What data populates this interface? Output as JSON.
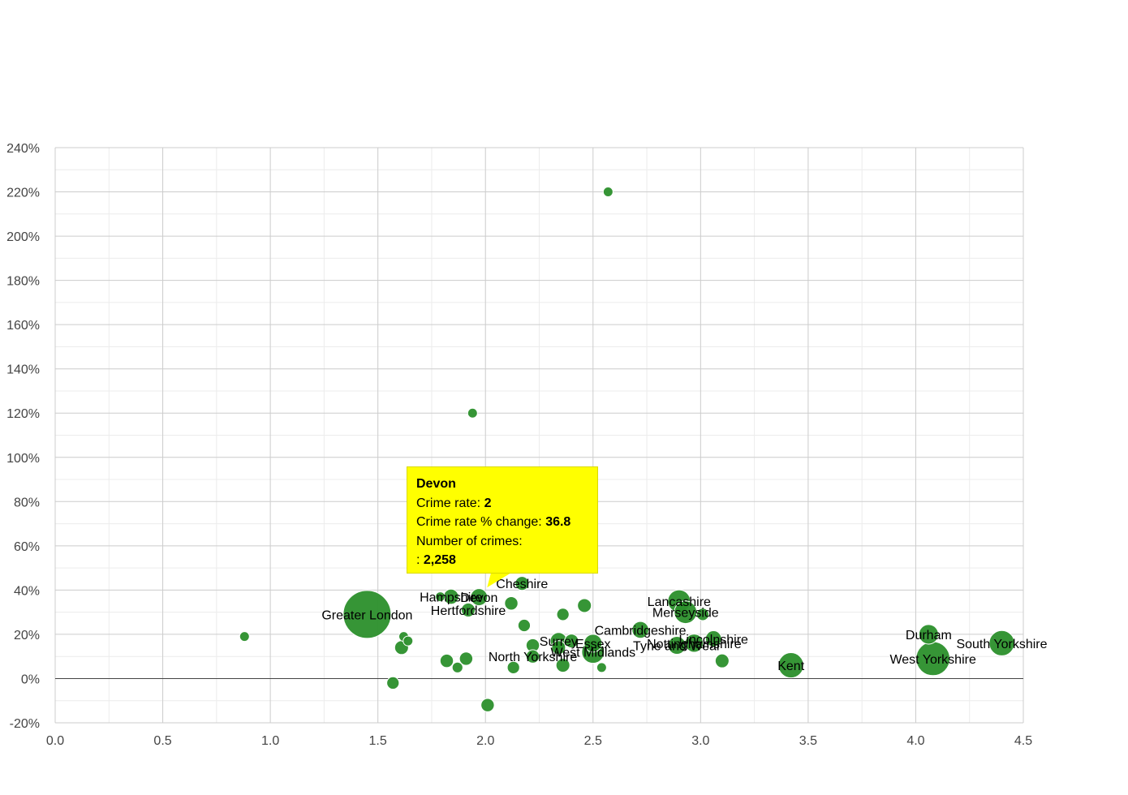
{
  "colors": {
    "bubble_fill": "#2b8f2b",
    "bubble_stroke": "#ffffff",
    "grid_major": "#cccccc",
    "grid_minor": "#ececec",
    "zero_line": "#444444",
    "tooltip_bg": "#ffff00"
  },
  "chart_data": {
    "type": "scatter",
    "title": "",
    "xlabel": "",
    "ylabel": "",
    "xlim": [
      0,
      4.5
    ],
    "ylim": [
      -20,
      240
    ],
    "x_ticks": [
      0,
      0.5,
      1,
      1.5,
      2,
      2.5,
      3,
      3.5,
      4,
      4.5
    ],
    "x_tick_labels": [
      "0.0",
      "0.5",
      "1.0",
      "1.5",
      "2.0",
      "2.5",
      "3.0",
      "3.5",
      "4.0",
      "4.5"
    ],
    "y_ticks": [
      -20,
      0,
      20,
      40,
      60,
      80,
      100,
      120,
      140,
      160,
      180,
      200,
      220,
      240
    ],
    "y_tick_labels": [
      "-20%",
      "0%",
      "20%",
      "40%",
      "60%",
      "80%",
      "100%",
      "120%",
      "140%",
      "160%",
      "180%",
      "200%",
      "220%",
      "240%"
    ],
    "points": [
      {
        "label": "",
        "x": 0.88,
        "y": 19,
        "size": 700
      },
      {
        "label": "Greater London",
        "x": 1.45,
        "y": 29,
        "size": 18000
      },
      {
        "label": "",
        "x": 1.57,
        "y": -2,
        "size": 1200
      },
      {
        "label": "",
        "x": 1.61,
        "y": 14,
        "size": 1500
      },
      {
        "label": "",
        "x": 1.62,
        "y": 19,
        "size": 400
      },
      {
        "label": "",
        "x": 1.64,
        "y": 17,
        "size": 400
      },
      {
        "label": "",
        "x": 1.79,
        "y": 37,
        "size": 400
      },
      {
        "label": "",
        "x": 1.82,
        "y": 8,
        "size": 1400
      },
      {
        "label": "Hampshire",
        "x": 1.84,
        "y": 37,
        "size": 1800
      },
      {
        "label": "",
        "x": 1.87,
        "y": 5,
        "size": 900
      },
      {
        "label": "",
        "x": 1.91,
        "y": 9,
        "size": 1400
      },
      {
        "label": "Hertfordshire",
        "x": 1.92,
        "y": 31,
        "size": 1500
      },
      {
        "label": "",
        "x": 1.94,
        "y": 120,
        "size": 400
      },
      {
        "label": "Devon",
        "x": 1.97,
        "y": 36.8,
        "size": 2258
      },
      {
        "label": "",
        "x": 2.01,
        "y": -12,
        "size": 1400
      },
      {
        "label": "",
        "x": 2.12,
        "y": 34,
        "size": 1400
      },
      {
        "label": "",
        "x": 2.13,
        "y": 5,
        "size": 1200
      },
      {
        "label": "Cheshire",
        "x": 2.17,
        "y": 43,
        "size": 1500
      },
      {
        "label": "",
        "x": 2.18,
        "y": 24,
        "size": 1200
      },
      {
        "label": "",
        "x": 2.22,
        "y": 15,
        "size": 1400
      },
      {
        "label": "North Yorkshire",
        "x": 2.22,
        "y": 10,
        "size": 1400
      },
      {
        "label": "Surrey",
        "x": 2.34,
        "y": 17,
        "size": 2200
      },
      {
        "label": "",
        "x": 2.34,
        "y": 14,
        "size": 1500
      },
      {
        "label": "",
        "x": 2.36,
        "y": 29,
        "size": 1200
      },
      {
        "label": "",
        "x": 2.36,
        "y": 6,
        "size": 1500
      },
      {
        "label": "",
        "x": 2.4,
        "y": 17,
        "size": 1500
      },
      {
        "label": "",
        "x": 2.46,
        "y": 33,
        "size": 1500
      },
      {
        "label": "West Midlands",
        "x": 2.5,
        "y": 12,
        "size": 4000
      },
      {
        "label": "Essex",
        "x": 2.5,
        "y": 16,
        "size": 2500
      },
      {
        "label": "",
        "x": 2.54,
        "y": 5,
        "size": 700
      },
      {
        "label": "",
        "x": 2.57,
        "y": 220,
        "size": 700
      },
      {
        "label": "Cambridgeshire",
        "x": 2.72,
        "y": 22,
        "size": 2200
      },
      {
        "label": "Tyne and Wear",
        "x": 2.89,
        "y": 15,
        "size": 2500
      },
      {
        "label": "Lancashire",
        "x": 2.9,
        "y": 35,
        "size": 4000
      },
      {
        "label": "Merseyside",
        "x": 2.93,
        "y": 30,
        "size": 4000
      },
      {
        "label": "",
        "x": 3.01,
        "y": 29,
        "size": 1200
      },
      {
        "label": "Nottinghamshire",
        "x": 2.97,
        "y": 16,
        "size": 2600
      },
      {
        "label": "Lincolnshire",
        "x": 3.06,
        "y": 18,
        "size": 2000
      },
      {
        "label": "",
        "x": 3.1,
        "y": 8,
        "size": 1500
      },
      {
        "label": "Kent",
        "x": 3.42,
        "y": 6,
        "size": 5000
      },
      {
        "label": "Durham",
        "x": 4.06,
        "y": 20,
        "size": 3000
      },
      {
        "label": "West Yorkshire",
        "x": 4.08,
        "y": 9,
        "size": 9000
      },
      {
        "label": "South Yorkshire",
        "x": 4.4,
        "y": 16,
        "size": 5000
      }
    ]
  },
  "tooltip": {
    "title": "Devon",
    "rate_label": "Crime rate: ",
    "rate_value": "2",
    "change_label": "Crime rate % change: ",
    "change_value": "36.8",
    "count_label": "Number of crimes:",
    "count_prefix": ": ",
    "count_value": "2,258"
  }
}
